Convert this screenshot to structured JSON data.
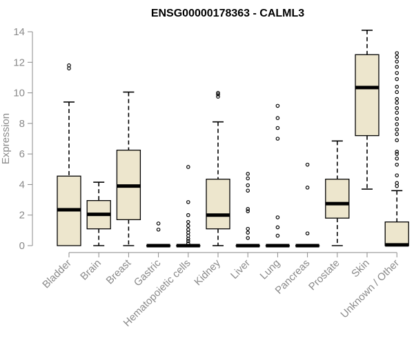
{
  "chart_data": {
    "type": "box",
    "title": "ENSG00000178363 - CALML3",
    "xlabel": "",
    "ylabel": "Expression",
    "ylim": [
      0,
      14
    ],
    "yticks": [
      0,
      2,
      4,
      6,
      8,
      10,
      12,
      14
    ],
    "grid": false,
    "colors": {
      "box_fill": "#ede6cd",
      "stroke": "#000000",
      "axis": "#8a8a8a"
    },
    "categories": [
      "Bladder",
      "Brain",
      "Breast",
      "Gastric",
      "Hematopoietic cells",
      "Kidney",
      "Liver",
      "Lung",
      "Pancreas",
      "Prostate",
      "Skin",
      "Unknown / Other"
    ],
    "boxes": [
      {
        "category": "Bladder",
        "whisker_low": 0,
        "q1": 0,
        "median": 2.35,
        "q3": 4.55,
        "whisker_high": 9.4,
        "outliers": [
          11.6,
          11.8
        ]
      },
      {
        "category": "Brain",
        "whisker_low": 0,
        "q1": 1.1,
        "median": 2.05,
        "q3": 2.95,
        "whisker_high": 4.15,
        "outliers": []
      },
      {
        "category": "Breast",
        "whisker_low": 0,
        "q1": 1.7,
        "median": 3.9,
        "q3": 6.25,
        "whisker_high": 10.05,
        "outliers": []
      },
      {
        "category": "Gastric",
        "whisker_low": 0,
        "q1": 0,
        "median": 0,
        "q3": 0,
        "whisker_high": 0,
        "outliers": [
          1.05,
          1.45
        ]
      },
      {
        "category": "Hematopoietic cells",
        "whisker_low": 0,
        "q1": 0,
        "median": 0,
        "q3": 0,
        "whisker_high": 0,
        "outliers": [
          0.15,
          0.3,
          0.45,
          0.65,
          0.85,
          1.05,
          1.3,
          1.55,
          2.0,
          2.85,
          5.15
        ]
      },
      {
        "category": "Kidney",
        "whisker_low": 0,
        "q1": 1.1,
        "median": 2.0,
        "q3": 4.35,
        "whisker_high": 8.1,
        "outliers": [
          9.75,
          9.9,
          10.0
        ]
      },
      {
        "category": "Liver",
        "whisker_low": 0,
        "q1": 0,
        "median": 0,
        "q3": 0,
        "whisker_high": 0,
        "outliers": [
          0.5,
          0.85,
          1.1,
          2.25,
          2.4,
          3.6,
          3.95,
          4.4,
          4.7
        ]
      },
      {
        "category": "Lung",
        "whisker_low": 0,
        "q1": 0,
        "median": 0,
        "q3": 0,
        "whisker_high": 0,
        "outliers": [
          0.65,
          1.2,
          1.85,
          7.0,
          7.7,
          8.35,
          9.15
        ]
      },
      {
        "category": "Pancreas",
        "whisker_low": 0,
        "q1": 0,
        "median": 0,
        "q3": 0,
        "whisker_high": 0,
        "outliers": [
          0.8,
          3.8,
          5.3
        ]
      },
      {
        "category": "Prostate",
        "whisker_low": 0,
        "q1": 1.8,
        "median": 2.75,
        "q3": 4.35,
        "whisker_high": 6.85,
        "outliers": []
      },
      {
        "category": "Skin",
        "whisker_low": 3.7,
        "q1": 7.2,
        "median": 10.35,
        "q3": 12.5,
        "whisker_high": 14.1,
        "outliers": []
      },
      {
        "category": "Unknown / Other",
        "whisker_low": 0,
        "q1": 0,
        "median": 0.05,
        "q3": 1.55,
        "whisker_high": 3.6,
        "outliers": [
          3.9,
          4.1,
          4.6,
          5.3,
          5.7,
          6.0,
          6.15,
          6.9,
          7.3,
          7.6,
          7.95,
          8.3,
          8.7,
          9.0,
          9.35,
          9.6,
          10.05,
          10.4,
          10.9,
          11.3,
          11.7,
          12.05,
          12.35,
          12.6
        ]
      }
    ]
  }
}
